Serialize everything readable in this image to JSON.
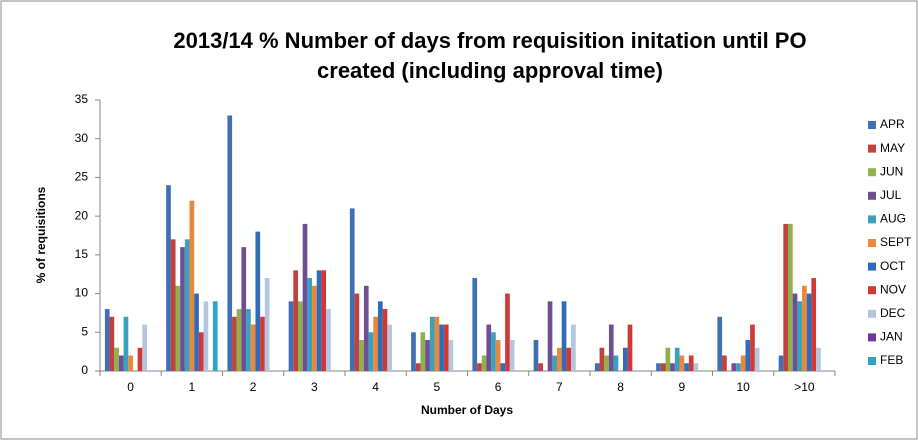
{
  "chart_data": {
    "type": "bar",
    "title": "2013/14 % Number of days from requisition initation until PO created (including approval  time)",
    "x_label": "Number of Days",
    "y_label": "% of requisitions",
    "categories": [
      "0",
      "1",
      "2",
      "3",
      "4",
      "5",
      "6",
      "7",
      "8",
      "9",
      "10",
      ">10"
    ],
    "series": [
      {
        "name": "APR",
        "color": "#3f6fb5",
        "values": [
          8,
          24,
          33,
          9,
          21,
          5,
          12,
          4,
          1,
          1,
          7,
          2
        ]
      },
      {
        "name": "MAY",
        "color": "#c0413d",
        "values": [
          7,
          17,
          7,
          13,
          10,
          1,
          1,
          1,
          3,
          1,
          2,
          19
        ]
      },
      {
        "name": "JUN",
        "color": "#8fb04c",
        "values": [
          3,
          11,
          8,
          9,
          4,
          5,
          2,
          0,
          2,
          3,
          0,
          19
        ]
      },
      {
        "name": "JUL",
        "color": "#6e4f96",
        "values": [
          2,
          16,
          16,
          19,
          11,
          4,
          6,
          9,
          6,
          1,
          1,
          10
        ]
      },
      {
        "name": "AUG",
        "color": "#3aa0bb",
        "values": [
          7,
          17,
          8,
          12,
          5,
          7,
          5,
          2,
          2,
          3,
          1,
          9
        ]
      },
      {
        "name": "SEPT",
        "color": "#e9873a",
        "values": [
          2,
          22,
          6,
          11,
          7,
          7,
          4,
          3,
          0,
          2,
          2,
          11
        ]
      },
      {
        "name": "OCT",
        "color": "#2f6db8",
        "values": [
          0,
          10,
          18,
          13,
          9,
          6,
          1,
          9,
          3,
          1,
          4,
          10
        ]
      },
      {
        "name": "NOV",
        "color": "#d0393a",
        "values": [
          3,
          5,
          7,
          13,
          8,
          6,
          10,
          3,
          6,
          2,
          6,
          12
        ]
      },
      {
        "name": "DEC",
        "color": "#b3c6df",
        "values": [
          6,
          9,
          12,
          8,
          6,
          4,
          4,
          6,
          0,
          1,
          3,
          3
        ]
      },
      {
        "name": "JAN",
        "color": "#6b3a9a",
        "values": [
          0,
          0,
          0,
          0,
          0,
          0,
          0,
          0,
          0,
          0,
          0,
          0
        ]
      },
      {
        "name": "FEB",
        "color": "#2fa4c6",
        "values": [
          0,
          9,
          0,
          0,
          0,
          0,
          0,
          0,
          0,
          0,
          0,
          0
        ]
      }
    ],
    "ylim": [
      0,
      35
    ],
    "yticks": [
      0,
      5,
      10,
      15,
      20,
      25,
      30,
      35
    ],
    "grid": false,
    "legend": "right"
  }
}
